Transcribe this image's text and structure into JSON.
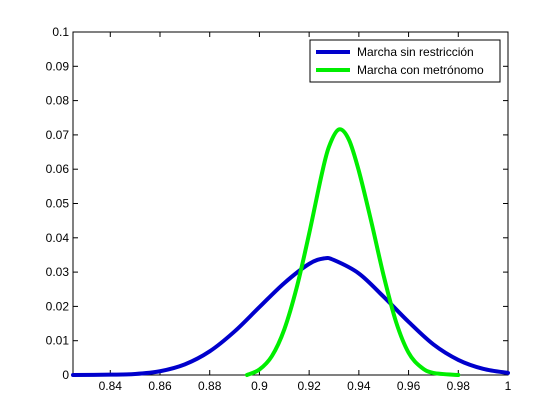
{
  "chart_data": {
    "type": "line",
    "title": "",
    "xlabel": "",
    "ylabel": "",
    "xlim": [
      0.825,
      1.0
    ],
    "ylim": [
      0,
      0.1
    ],
    "x_ticks": [
      0.84,
      0.86,
      0.88,
      0.9,
      0.92,
      0.94,
      0.96,
      0.98,
      1
    ],
    "x_tick_labels": [
      "0.84",
      "0.86",
      "0.88",
      "0.9",
      "0.92",
      "0.94",
      "0.96",
      "0.98",
      "1"
    ],
    "y_ticks": [
      0,
      0.01,
      0.02,
      0.03,
      0.04,
      0.05,
      0.06,
      0.07,
      0.08,
      0.09,
      0.1
    ],
    "y_tick_labels": [
      "0",
      "0.01",
      "0.02",
      "0.03",
      "0.04",
      "0.05",
      "0.06",
      "0.07",
      "0.08",
      "0.09",
      "0.1"
    ],
    "grid": false,
    "legend_position": "top-right",
    "series": [
      {
        "name": "Marcha sin restricción",
        "color": "#0000cc",
        "x": [
          0.825,
          0.84,
          0.85,
          0.86,
          0.87,
          0.88,
          0.89,
          0.9,
          0.91,
          0.92,
          0.926,
          0.93,
          0.94,
          0.95,
          0.96,
          0.97,
          0.98,
          0.99,
          1.0
        ],
        "y": [
          0.0,
          0.0001,
          0.0003,
          0.0011,
          0.0031,
          0.0069,
          0.0127,
          0.0198,
          0.0268,
          0.0324,
          0.034,
          0.0335,
          0.0296,
          0.0228,
          0.0155,
          0.0089,
          0.0044,
          0.0018,
          0.0006
        ]
      },
      {
        "name": "Marcha con metrónomo",
        "color": "#00ee00",
        "x": [
          0.895,
          0.9,
          0.905,
          0.91,
          0.915,
          0.92,
          0.925,
          0.928,
          0.932,
          0.936,
          0.94,
          0.945,
          0.95,
          0.955,
          0.96,
          0.965,
          0.97,
          0.98
        ],
        "y": [
          0.0,
          0.0016,
          0.0055,
          0.0133,
          0.0255,
          0.0412,
          0.0583,
          0.0666,
          0.0716,
          0.0686,
          0.0595,
          0.0447,
          0.0289,
          0.0154,
          0.0065,
          0.0023,
          0.0006,
          0.0
        ]
      }
    ]
  }
}
